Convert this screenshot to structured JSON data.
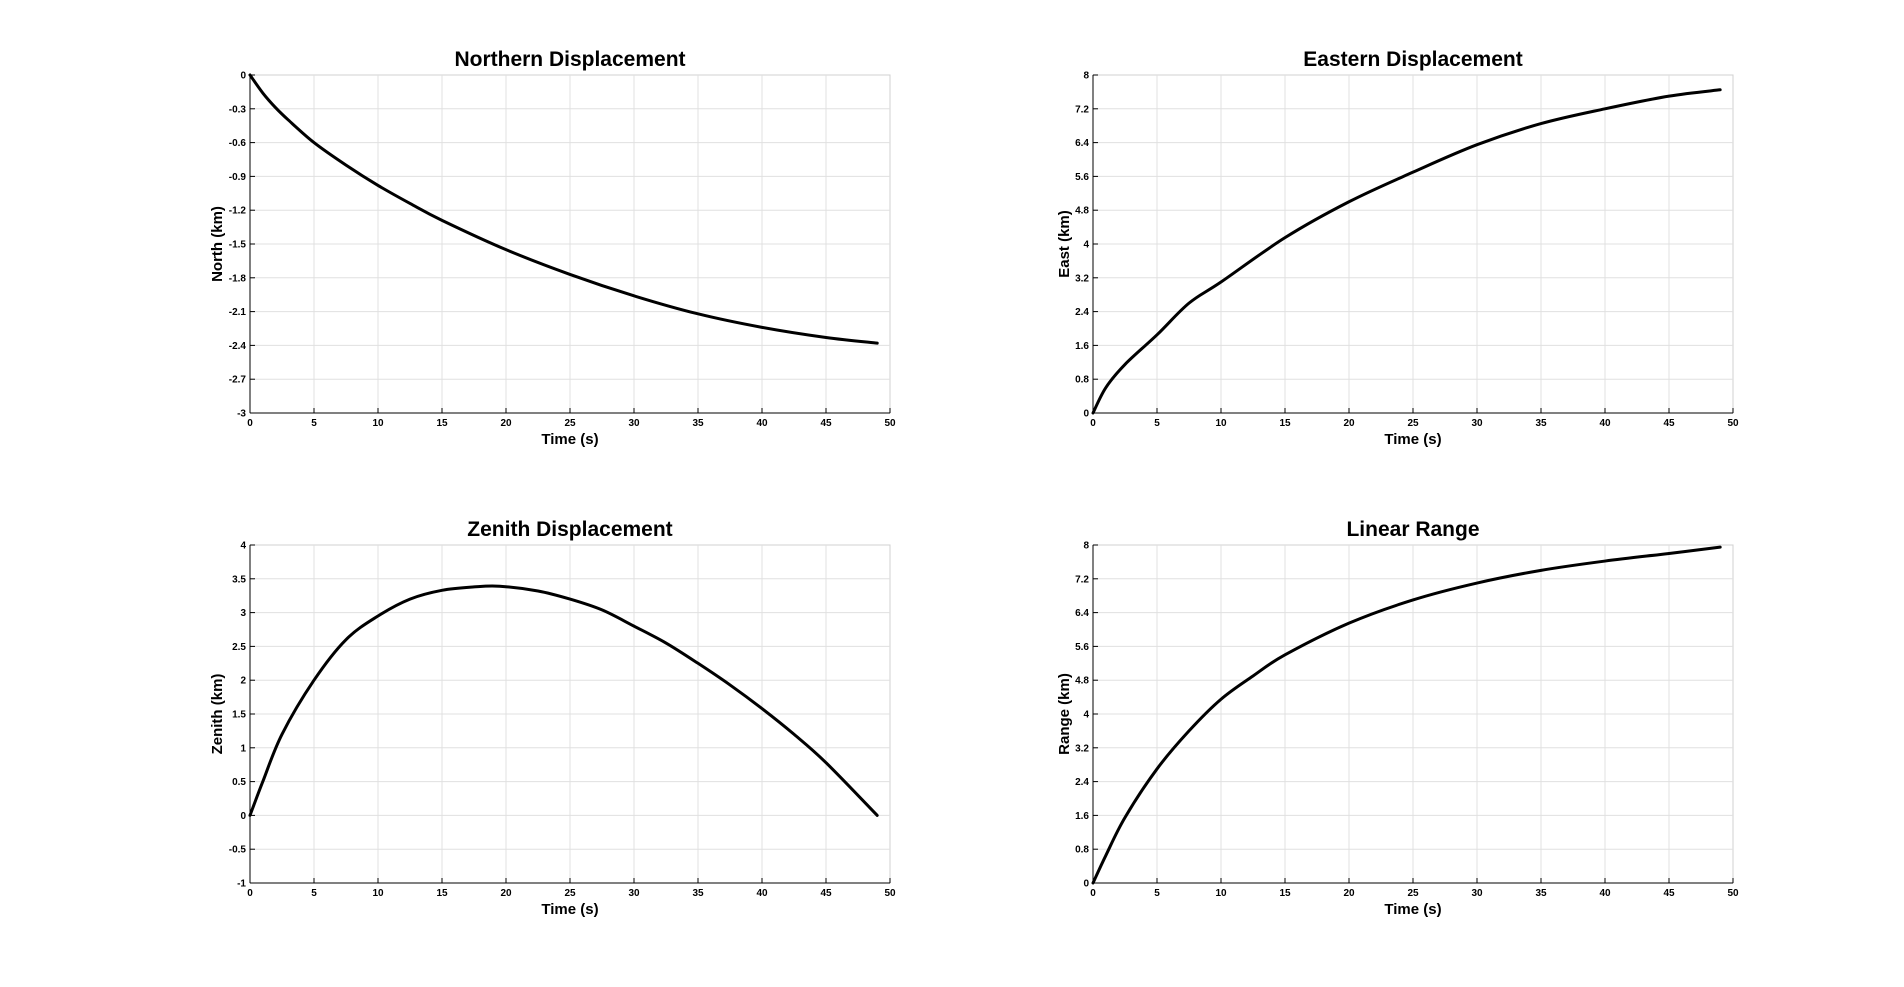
{
  "colors": {
    "line": "#000000",
    "grid": "#e0e0e0",
    "background": "#ffffff"
  },
  "chart_data": [
    {
      "type": "line",
      "title": "Northern Displacement",
      "xlabel": "Time (s)",
      "ylabel": "North (km)",
      "xlim": [
        0,
        50
      ],
      "ylim": [
        -3,
        0
      ],
      "xticks": [
        "0",
        "5",
        "10",
        "15",
        "20",
        "25",
        "30",
        "35",
        "40",
        "45",
        "50"
      ],
      "yticks": [
        "0",
        "-0.3",
        "-0.6",
        "-0.9",
        "-1.2",
        "-1.5",
        "-1.8",
        "-2.1",
        "-2.4",
        "-2.7",
        "-3"
      ],
      "grid": true,
      "series": [
        {
          "x": [
            0,
            1,
            2,
            3,
            5,
            7.5,
            10,
            12.5,
            15,
            20,
            25,
            30,
            35,
            40,
            45,
            49
          ],
          "y": [
            0,
            -0.16,
            -0.29,
            -0.4,
            -0.6,
            -0.8,
            -0.98,
            -1.14,
            -1.29,
            -1.55,
            -1.77,
            -1.96,
            -2.12,
            -2.24,
            -2.33,
            -2.38
          ]
        }
      ]
    },
    {
      "type": "line",
      "title": "Eastern Displacement",
      "xlabel": "Time (s)",
      "ylabel": "East (km)",
      "xlim": [
        0,
        50
      ],
      "ylim": [
        0,
        8
      ],
      "xticks": [
        "0",
        "5",
        "10",
        "15",
        "20",
        "25",
        "30",
        "35",
        "40",
        "45",
        "50"
      ],
      "yticks": [
        "0",
        "0.8",
        "1.6",
        "2.4",
        "3.2",
        "4",
        "4.8",
        "5.6",
        "6.4",
        "7.2",
        "8"
      ],
      "grid": true,
      "series": [
        {
          "x": [
            0,
            1,
            2.5,
            5,
            7.5,
            10,
            15,
            20,
            25,
            30,
            35,
            40,
            45,
            49
          ],
          "y": [
            0,
            0.6,
            1.15,
            1.85,
            2.6,
            3.1,
            4.15,
            5.0,
            5.7,
            6.35,
            6.85,
            7.2,
            7.5,
            7.65
          ]
        }
      ]
    },
    {
      "type": "line",
      "title": "Zenith Displacement",
      "xlabel": "Time (s)",
      "ylabel": "Zenith (km)",
      "xlim": [
        0,
        50
      ],
      "ylim": [
        -1,
        4
      ],
      "xticks": [
        "0",
        "5",
        "10",
        "15",
        "20",
        "25",
        "30",
        "35",
        "40",
        "45",
        "50"
      ],
      "yticks": [
        "4",
        "3.5",
        "3",
        "2.5",
        "2",
        "1.5",
        "1",
        "0.5",
        "0",
        "-0.5",
        "-1"
      ],
      "grid": true,
      "series": [
        {
          "x": [
            0,
            1,
            2.5,
            5,
            7.5,
            10,
            12.5,
            15,
            17.5,
            19.5,
            22.5,
            25,
            27.5,
            30,
            32.5,
            35,
            37.5,
            40,
            42.5,
            45,
            49
          ],
          "y": [
            0,
            0.5,
            1.2,
            2.0,
            2.6,
            2.95,
            3.2,
            3.33,
            3.38,
            3.39,
            3.32,
            3.2,
            3.04,
            2.8,
            2.55,
            2.25,
            1.93,
            1.58,
            1.2,
            0.78,
            0
          ]
        }
      ]
    },
    {
      "type": "line",
      "title": "Linear Range",
      "xlabel": "Time (s)",
      "ylabel": "Range (km)",
      "xlim": [
        0,
        50
      ],
      "ylim": [
        0,
        8
      ],
      "xticks": [
        "0",
        "5",
        "10",
        "15",
        "20",
        "25",
        "30",
        "35",
        "40",
        "45",
        "50"
      ],
      "yticks": [
        "8",
        "7.2",
        "6.4",
        "5.6",
        "4.8",
        "4",
        "3.2",
        "2.4",
        "1.6",
        "0.8",
        "0"
      ],
      "grid": true,
      "series": [
        {
          "x": [
            0,
            1,
            2.5,
            5,
            7.5,
            10,
            12.5,
            15,
            20,
            25,
            30,
            35,
            40,
            45,
            49
          ],
          "y": [
            0,
            0.65,
            1.55,
            2.7,
            3.6,
            4.35,
            4.9,
            5.4,
            6.15,
            6.7,
            7.1,
            7.4,
            7.62,
            7.8,
            7.95
          ]
        }
      ]
    }
  ]
}
